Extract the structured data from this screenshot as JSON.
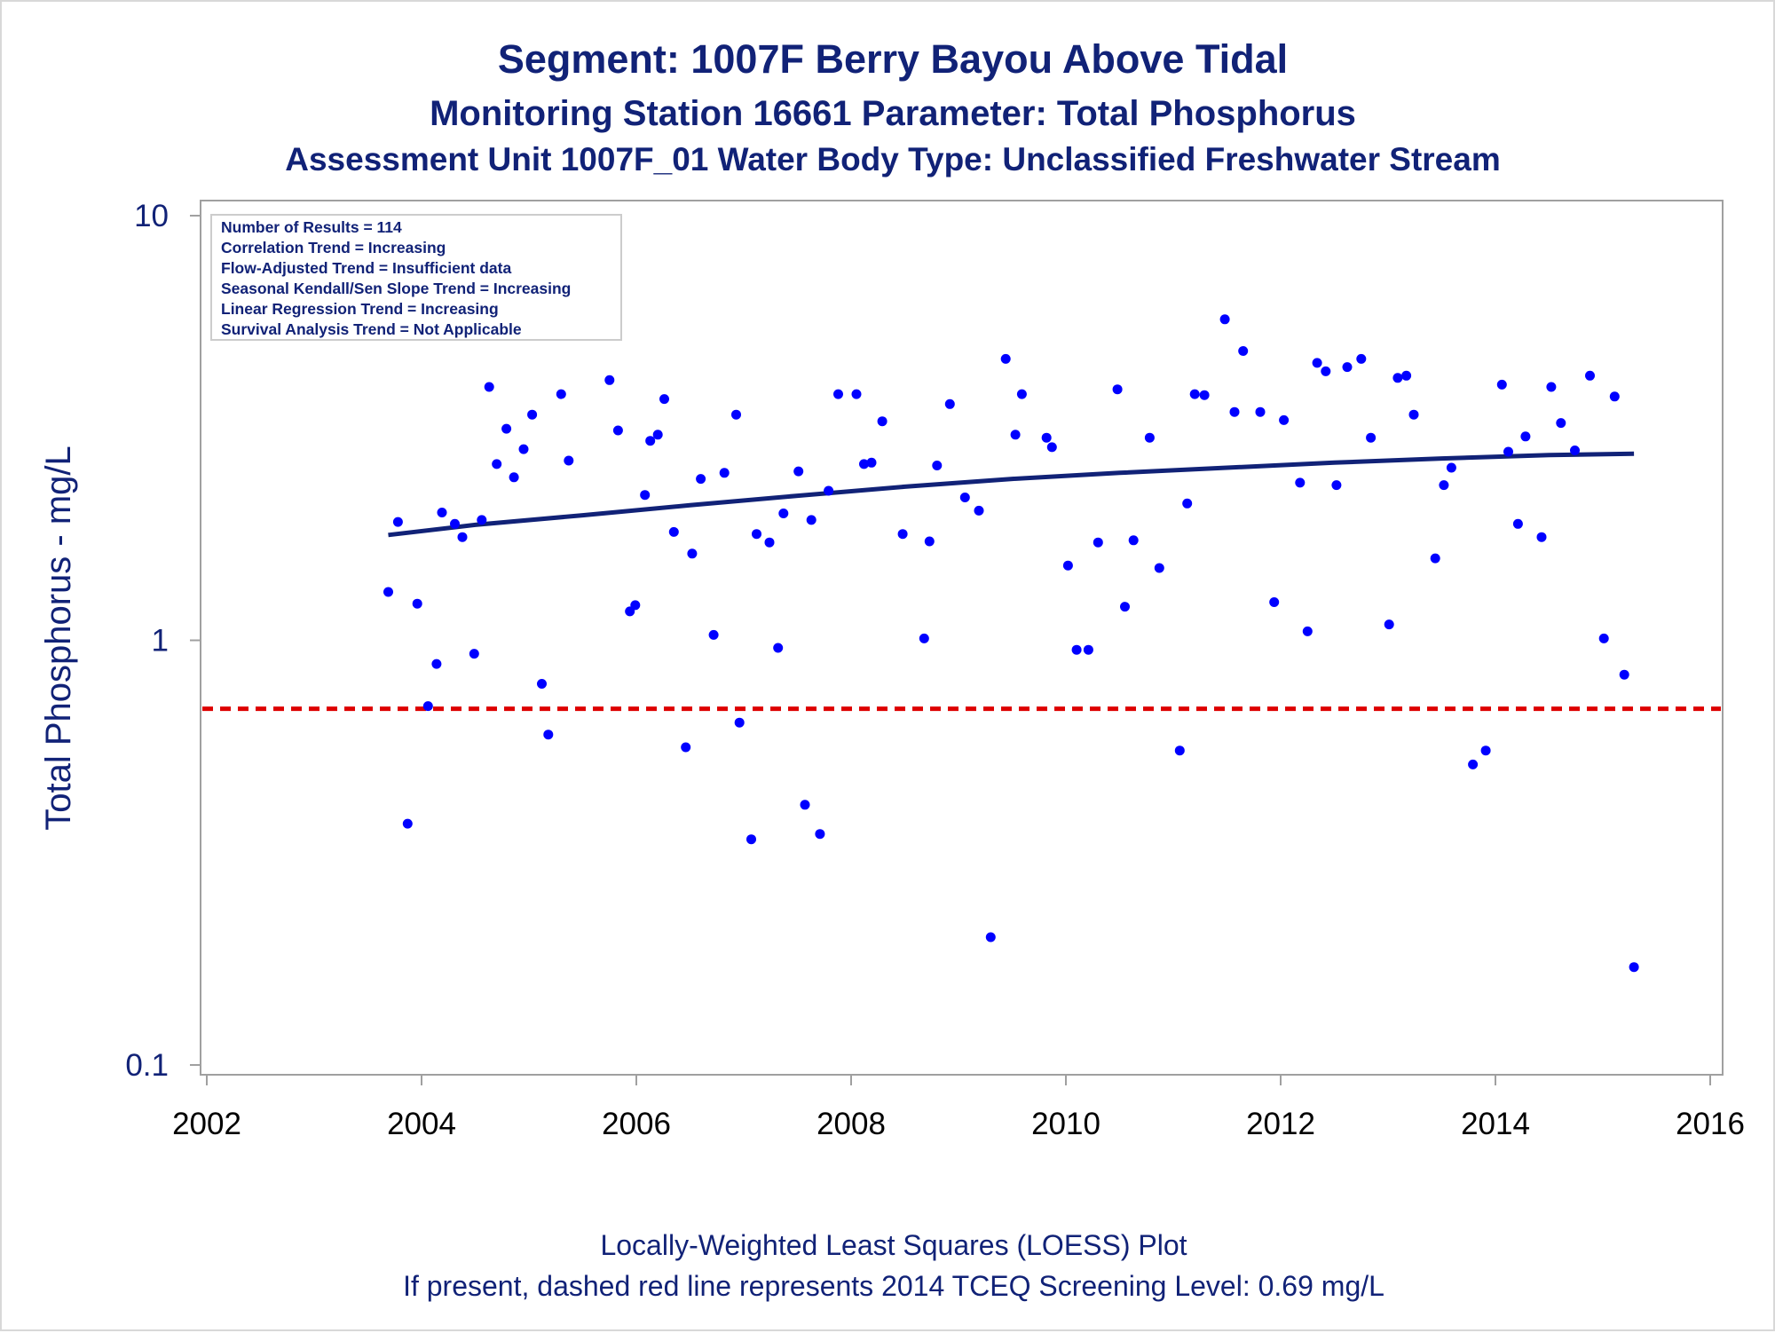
{
  "chart_data": {
    "type": "scatter",
    "title": "Segment: 1007F  Berry Bayou Above Tidal",
    "subtitle": "Monitoring Station 16661 Parameter: Total Phosphorus",
    "subtitle2": "Assessment Unit 1007F_01   Water Body Type: Unclassified Freshwater Stream",
    "xlabel": "",
    "ylabel": "Total Phosphorus - mg/L",
    "footnote1": "Locally-Weighted Least Squares (LOESS) Plot",
    "footnote2": "If present, dashed red line represents 2014 TCEQ Screening Level: 0.69 mg/L",
    "xlim": [
      2002,
      2016
    ],
    "ylim": [
      0.1,
      10
    ],
    "yscale": "log",
    "x_ticks": [
      "2002",
      "2004",
      "2006",
      "2008",
      "2010",
      "2012",
      "2014",
      "2016"
    ],
    "y_ticks": [
      {
        "value": 0.1,
        "label": "0.1"
      },
      {
        "value": 1,
        "label": "1"
      },
      {
        "value": 10,
        "label": "10"
      }
    ],
    "grid": false,
    "legend_placement": "none",
    "inset_text": [
      "Number of Results = 114",
      "Correlation Trend = Increasing",
      "Flow-Adjusted Trend = Insufficient data",
      "Seasonal Kendall/Sen Slope Trend = Increasing",
      "Linear Regression Trend = Increasing",
      "Survival Analysis Trend = Not Applicable"
    ],
    "screening_level": {
      "value": 0.69,
      "color": "#dd0000",
      "style": "dashed"
    },
    "colors": {
      "points": "#0000ff",
      "trend": "#112277",
      "text": "#112277",
      "axis": "#a0a0a0"
    },
    "series": [
      {
        "type": "scatter",
        "points": [
          [
            2003.69,
            1.3
          ],
          [
            2003.78,
            1.9
          ],
          [
            2003.87,
            0.37
          ],
          [
            2003.96,
            1.22
          ],
          [
            2004.06,
            0.7
          ],
          [
            2004.14,
            0.88
          ],
          [
            2004.19,
            2.0
          ],
          [
            2004.31,
            1.88
          ],
          [
            2004.38,
            1.75
          ],
          [
            2004.49,
            0.93
          ],
          [
            2004.56,
            1.92
          ],
          [
            2004.63,
            3.95
          ],
          [
            2004.7,
            2.6
          ],
          [
            2004.79,
            3.15
          ],
          [
            2004.86,
            2.42
          ],
          [
            2004.95,
            2.82
          ],
          [
            2005.03,
            3.4
          ],
          [
            2005.12,
            0.79
          ],
          [
            2005.18,
            0.6
          ],
          [
            2005.3,
            3.8
          ],
          [
            2005.37,
            2.65
          ],
          [
            2005.75,
            4.1
          ],
          [
            2005.83,
            3.12
          ],
          [
            2005.94,
            1.17
          ],
          [
            2005.99,
            1.21
          ],
          [
            2006.08,
            2.2
          ],
          [
            2006.13,
            2.95
          ],
          [
            2006.2,
            3.05
          ],
          [
            2006.26,
            3.7
          ],
          [
            2006.35,
            1.8
          ],
          [
            2006.46,
            0.56
          ],
          [
            2006.52,
            1.6
          ],
          [
            2006.6,
            2.4
          ],
          [
            2006.72,
            1.03
          ],
          [
            2006.82,
            2.48
          ],
          [
            2006.93,
            3.4
          ],
          [
            2006.96,
            0.64
          ],
          [
            2007.07,
            0.34
          ],
          [
            2007.12,
            1.78
          ],
          [
            2007.24,
            1.7
          ],
          [
            2007.32,
            0.96
          ],
          [
            2007.37,
            1.99
          ],
          [
            2007.51,
            2.5
          ],
          [
            2007.57,
            0.41
          ],
          [
            2007.63,
            1.92
          ],
          [
            2007.71,
            0.35
          ],
          [
            2007.79,
            2.25
          ],
          [
            2007.88,
            3.8
          ],
          [
            2008.05,
            3.8
          ],
          [
            2008.12,
            2.6
          ],
          [
            2008.19,
            2.62
          ],
          [
            2008.29,
            3.28
          ],
          [
            2008.48,
            1.78
          ],
          [
            2008.68,
            1.01
          ],
          [
            2008.73,
            1.71
          ],
          [
            2008.8,
            2.58
          ],
          [
            2008.92,
            3.6
          ],
          [
            2009.06,
            2.17
          ],
          [
            2009.19,
            2.02
          ],
          [
            2009.3,
            0.2
          ],
          [
            2009.44,
            4.6
          ],
          [
            2009.53,
            3.05
          ],
          [
            2009.59,
            3.8
          ],
          [
            2009.82,
            3.0
          ],
          [
            2009.87,
            2.85
          ],
          [
            2010.02,
            1.5
          ],
          [
            2010.1,
            0.95
          ],
          [
            2010.21,
            0.95
          ],
          [
            2010.3,
            1.7
          ],
          [
            2010.48,
            3.9
          ],
          [
            2010.55,
            1.2
          ],
          [
            2010.63,
            1.72
          ],
          [
            2010.78,
            3.0
          ],
          [
            2010.87,
            1.48
          ],
          [
            2011.06,
            0.55
          ],
          [
            2011.13,
            2.1
          ],
          [
            2011.2,
            3.8
          ],
          [
            2011.29,
            3.78
          ],
          [
            2011.48,
            5.7
          ],
          [
            2011.57,
            3.45
          ],
          [
            2011.65,
            4.8
          ],
          [
            2011.81,
            3.45
          ],
          [
            2011.94,
            1.23
          ],
          [
            2012.03,
            3.3
          ],
          [
            2012.18,
            2.35
          ],
          [
            2012.25,
            1.05
          ],
          [
            2012.34,
            4.5
          ],
          [
            2012.42,
            4.3
          ],
          [
            2012.52,
            2.32
          ],
          [
            2012.62,
            4.4
          ],
          [
            2012.75,
            4.6
          ],
          [
            2012.84,
            3.0
          ],
          [
            2013.01,
            1.09
          ],
          [
            2013.09,
            4.15
          ],
          [
            2013.17,
            4.2
          ],
          [
            2013.24,
            3.4
          ],
          [
            2013.44,
            1.56
          ],
          [
            2013.52,
            2.32
          ],
          [
            2013.59,
            2.55
          ],
          [
            2013.79,
            0.51
          ],
          [
            2013.91,
            0.55
          ],
          [
            2014.06,
            4.0
          ],
          [
            2014.12,
            2.78
          ],
          [
            2014.21,
            1.88
          ],
          [
            2014.28,
            3.02
          ],
          [
            2014.43,
            1.75
          ],
          [
            2014.52,
            3.95
          ],
          [
            2014.61,
            3.25
          ],
          [
            2014.74,
            2.8
          ],
          [
            2014.88,
            4.2
          ],
          [
            2015.01,
            1.01
          ],
          [
            2015.11,
            3.75
          ],
          [
            2015.2,
            0.83
          ],
          [
            2015.29,
            0.17
          ]
        ]
      },
      {
        "type": "line",
        "points": [
          [
            2003.69,
            1.77
          ],
          [
            2004.5,
            1.87
          ],
          [
            2005.5,
            1.97
          ],
          [
            2006.5,
            2.08
          ],
          [
            2007.5,
            2.19
          ],
          [
            2008.5,
            2.3
          ],
          [
            2009.5,
            2.4
          ],
          [
            2010.5,
            2.48
          ],
          [
            2011.5,
            2.55
          ],
          [
            2012.5,
            2.62
          ],
          [
            2013.5,
            2.68
          ],
          [
            2014.5,
            2.73
          ],
          [
            2015.29,
            2.75
          ]
        ]
      }
    ]
  }
}
